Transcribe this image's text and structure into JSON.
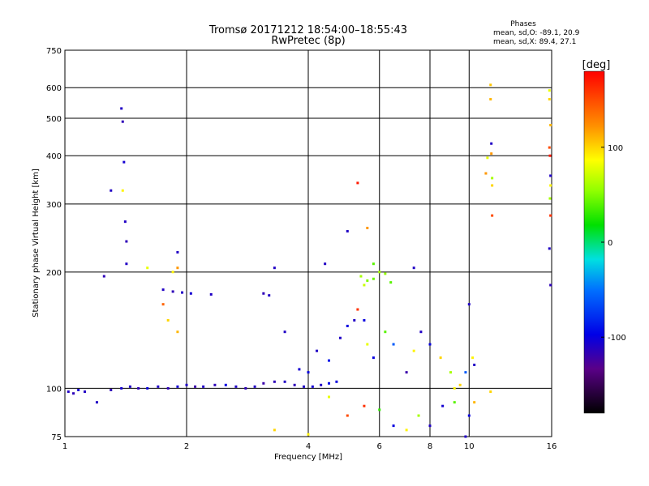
{
  "chart_data": {
    "type": "scatter",
    "title": "Tromsø 20171212 18:54:00–18:55:43",
    "subtitle": "RwPretec (8p)",
    "xlabel": "Frequency [MHz]",
    "ylabel": "Stationary phase Virtual Height [km]",
    "x_scale": "log",
    "y_scale": "log",
    "xlim": [
      1,
      16
    ],
    "ylim": [
      75,
      750
    ],
    "x_ticks": [
      1,
      2,
      4,
      6,
      8,
      10,
      16
    ],
    "y_ticks": [
      75,
      100,
      200,
      300,
      400,
      500,
      600,
      750
    ],
    "grid": true,
    "phases_box": {
      "title": "Phases",
      "line1": "mean, sd,O: -89.1, 20.9",
      "line2": "mean, sd,X:  89.4, 27.1"
    },
    "colorbar": {
      "label": "[deg]",
      "ticks": [
        100,
        0,
        -100
      ],
      "range": [
        -180,
        180
      ]
    },
    "point_phase_values": "approximate; colors encode phase in degrees",
    "series": [
      {
        "traces": [
          [
            1.02,
            98,
            -110
          ],
          [
            1.05,
            97,
            -115
          ],
          [
            1.08,
            99,
            -105
          ],
          [
            1.12,
            98,
            -110
          ],
          [
            1.2,
            92,
            -110
          ],
          [
            1.3,
            99,
            -115
          ],
          [
            1.38,
            100,
            -105
          ],
          [
            1.45,
            101,
            -110
          ],
          [
            1.52,
            100,
            -115
          ],
          [
            1.6,
            100,
            -100
          ],
          [
            1.7,
            101,
            -110
          ],
          [
            1.8,
            100,
            -115
          ],
          [
            1.9,
            101,
            -105
          ],
          [
            2.0,
            102,
            -110
          ],
          [
            2.1,
            101,
            -120
          ],
          [
            2.2,
            101,
            -110
          ],
          [
            2.35,
            102,
            -115
          ],
          [
            2.5,
            102,
            -100
          ],
          [
            2.65,
            101,
            -110
          ],
          [
            2.8,
            100,
            -115
          ],
          [
            2.95,
            101,
            -110
          ],
          [
            3.1,
            103,
            -120
          ],
          [
            3.3,
            104,
            -115
          ],
          [
            3.5,
            104,
            -110
          ],
          [
            3.7,
            102,
            -115
          ],
          [
            3.9,
            101,
            -110
          ],
          [
            4.1,
            101,
            -105
          ],
          [
            4.3,
            102,
            -110
          ],
          [
            4.5,
            103,
            -95
          ],
          [
            4.7,
            104,
            -100
          ]
        ]
      },
      {
        "traces": [
          [
            1.75,
            180,
            -110
          ],
          [
            1.85,
            178,
            -115
          ],
          [
            1.95,
            177,
            -110
          ],
          [
            2.05,
            176,
            -105
          ],
          [
            2.3,
            175,
            -110
          ],
          [
            3.1,
            176,
            -115
          ],
          [
            3.2,
            174,
            -110
          ]
        ]
      },
      {
        "traces": [
          [
            1.38,
            530,
            -110
          ],
          [
            1.39,
            490,
            -115
          ],
          [
            1.4,
            385,
            -105
          ],
          [
            1.41,
            270,
            -110
          ],
          [
            1.42,
            240,
            -115
          ],
          [
            1.42,
            210,
            -110
          ],
          [
            1.3,
            325,
            -110
          ],
          [
            1.25,
            195,
            -115
          ],
          [
            1.39,
            325,
            90
          ]
        ]
      },
      {
        "traces": [
          [
            3.5,
            140,
            -110
          ],
          [
            3.8,
            112,
            -105
          ],
          [
            4.0,
            110,
            -100
          ],
          [
            4.2,
            125,
            -110
          ],
          [
            4.5,
            118,
            -90
          ],
          [
            4.8,
            135,
            -110
          ],
          [
            5.0,
            145,
            -100
          ],
          [
            5.2,
            150,
            -110
          ],
          [
            5.3,
            160,
            160
          ],
          [
            5.5,
            150,
            -100
          ],
          [
            5.6,
            130,
            80
          ],
          [
            5.8,
            120,
            -100
          ],
          [
            6.2,
            140,
            40
          ],
          [
            6.5,
            130,
            -60
          ],
          [
            7.0,
            110,
            -120
          ],
          [
            7.3,
            125,
            90
          ],
          [
            7.6,
            140,
            -110
          ],
          [
            8.0,
            130,
            -100
          ],
          [
            8.5,
            120,
            100
          ],
          [
            9.0,
            110,
            60
          ],
          [
            9.2,
            100,
            90
          ],
          [
            9.5,
            102,
            100
          ],
          [
            9.8,
            110,
            -60
          ],
          [
            10.0,
            165,
            -110
          ],
          [
            10.2,
            120,
            90
          ],
          [
            10.3,
            115,
            -110
          ]
        ]
      },
      {
        "traces": [
          [
            5.4,
            195,
            60
          ],
          [
            5.6,
            190,
            50
          ],
          [
            5.8,
            192,
            45
          ],
          [
            6.0,
            200,
            60
          ],
          [
            6.2,
            198,
            55
          ],
          [
            6.4,
            188,
            40
          ],
          [
            5.5,
            185,
            70
          ]
        ]
      },
      {
        "traces": [
          [
            4.5,
            95,
            80
          ],
          [
            5.0,
            85,
            150
          ],
          [
            5.5,
            90,
            160
          ],
          [
            6.0,
            88,
            30
          ],
          [
            6.5,
            80,
            -100
          ],
          [
            7.0,
            78,
            90
          ],
          [
            7.5,
            85,
            60
          ],
          [
            8.0,
            80,
            -110
          ],
          [
            8.6,
            90,
            -105
          ],
          [
            9.2,
            92,
            40
          ],
          [
            9.8,
            75,
            -110
          ],
          [
            10.0,
            85,
            -100
          ],
          [
            10.3,
            92,
            110
          ],
          [
            3.3,
            78,
            100
          ],
          [
            4.0,
            76,
            90
          ]
        ]
      },
      {
        "traces": [
          [
            11.3,
            610,
            105
          ],
          [
            11.3,
            560,
            110
          ],
          [
            11.35,
            430,
            -110
          ],
          [
            11.35,
            405,
            120
          ],
          [
            11.4,
            350,
            60
          ],
          [
            11.4,
            335,
            100
          ],
          [
            11.4,
            280,
            150
          ],
          [
            11.3,
            98,
            100
          ],
          [
            11.0,
            360,
            120
          ],
          [
            11.1,
            395,
            80
          ],
          [
            15.8,
            590,
            80
          ],
          [
            15.8,
            560,
            100
          ],
          [
            15.9,
            480,
            110
          ],
          [
            15.8,
            420,
            150
          ],
          [
            15.85,
            400,
            170
          ],
          [
            15.9,
            355,
            -110
          ],
          [
            15.9,
            335,
            90
          ],
          [
            15.85,
            310,
            60
          ],
          [
            15.9,
            280,
            160
          ],
          [
            15.8,
            230,
            -110
          ],
          [
            15.9,
            185,
            -115
          ]
        ]
      },
      {
        "traces": [
          [
            1.75,
            165,
            140
          ],
          [
            1.8,
            150,
            100
          ],
          [
            1.9,
            140,
            110
          ],
          [
            1.85,
            200,
            90
          ],
          [
            1.9,
            205,
            120
          ],
          [
            1.9,
            225,
            -110
          ],
          [
            1.6,
            205,
            80
          ],
          [
            3.3,
            205,
            -110
          ],
          [
            4.4,
            210,
            -110
          ],
          [
            5.0,
            255,
            -110
          ],
          [
            5.3,
            340,
            170
          ],
          [
            5.6,
            260,
            120
          ],
          [
            5.8,
            210,
            40
          ],
          [
            7.3,
            205,
            -110
          ]
        ]
      }
    ]
  }
}
